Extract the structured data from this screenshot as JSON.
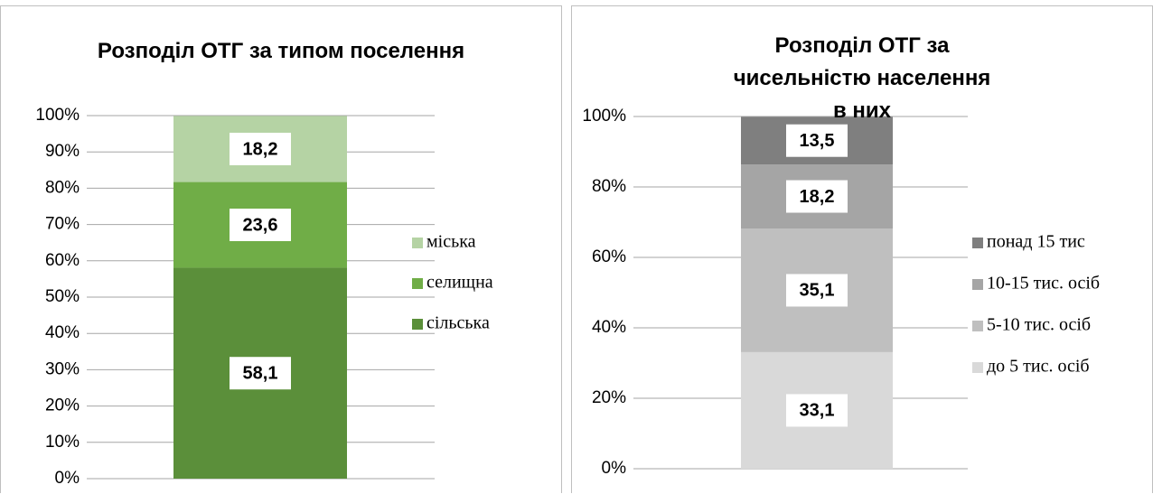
{
  "chart_data": [
    {
      "type": "stacked_bar",
      "title": "Розподіл ОТГ за типом поселення",
      "ylim": [
        0,
        100
      ],
      "yticks": [
        {
          "value": 0,
          "label": "0%"
        },
        {
          "value": 10,
          "label": "10%"
        },
        {
          "value": 20,
          "label": "20%"
        },
        {
          "value": 30,
          "label": "30%"
        },
        {
          "value": 40,
          "label": "40%"
        },
        {
          "value": 50,
          "label": "50%"
        },
        {
          "value": 60,
          "label": "60%"
        },
        {
          "value": 70,
          "label": "70%"
        },
        {
          "value": 80,
          "label": "80%"
        },
        {
          "value": 90,
          "label": "90%"
        },
        {
          "value": 100,
          "label": "100%"
        }
      ],
      "grid": true,
      "legend": "right",
      "series": [
        {
          "name": "сільська",
          "color": "#5b8f3a",
          "values": [
            58.1
          ],
          "value_labels": [
            "58,1"
          ]
        },
        {
          "name": "селищна",
          "color": "#70ad47",
          "values": [
            23.6
          ],
          "value_labels": [
            "23,6"
          ]
        },
        {
          "name": "міська",
          "color": "#b5d3a4",
          "values": [
            18.2
          ],
          "value_labels": [
            "18,2"
          ]
        }
      ]
    },
    {
      "type": "stacked_bar",
      "title": "Розподіл ОТГ за чисельністю населення в них",
      "ylim": [
        0,
        100
      ],
      "yticks": [
        {
          "value": 0,
          "label": "0%"
        },
        {
          "value": 20,
          "label": "20%"
        },
        {
          "value": 40,
          "label": "40%"
        },
        {
          "value": 60,
          "label": "60%"
        },
        {
          "value": 80,
          "label": "80%"
        },
        {
          "value": 100,
          "label": "100%"
        }
      ],
      "grid": true,
      "legend": "right",
      "series": [
        {
          "name": "до 5 тис. осіб",
          "color": "#d9d9d9",
          "values": [
            33.1
          ],
          "value_labels": [
            "33,1"
          ]
        },
        {
          "name": "5-10 тис. осіб",
          "color": "#bfbfbf",
          "values": [
            35.1
          ],
          "value_labels": [
            "35,1"
          ]
        },
        {
          "name": "10-15 тис. осіб",
          "color": "#a5a5a5",
          "values": [
            18.2
          ],
          "value_labels": [
            "18,2"
          ]
        },
        {
          "name": "понад 15 тис",
          "color": "#7f7f7f",
          "values": [
            13.5
          ],
          "value_labels": [
            "13,5"
          ]
        }
      ]
    }
  ]
}
